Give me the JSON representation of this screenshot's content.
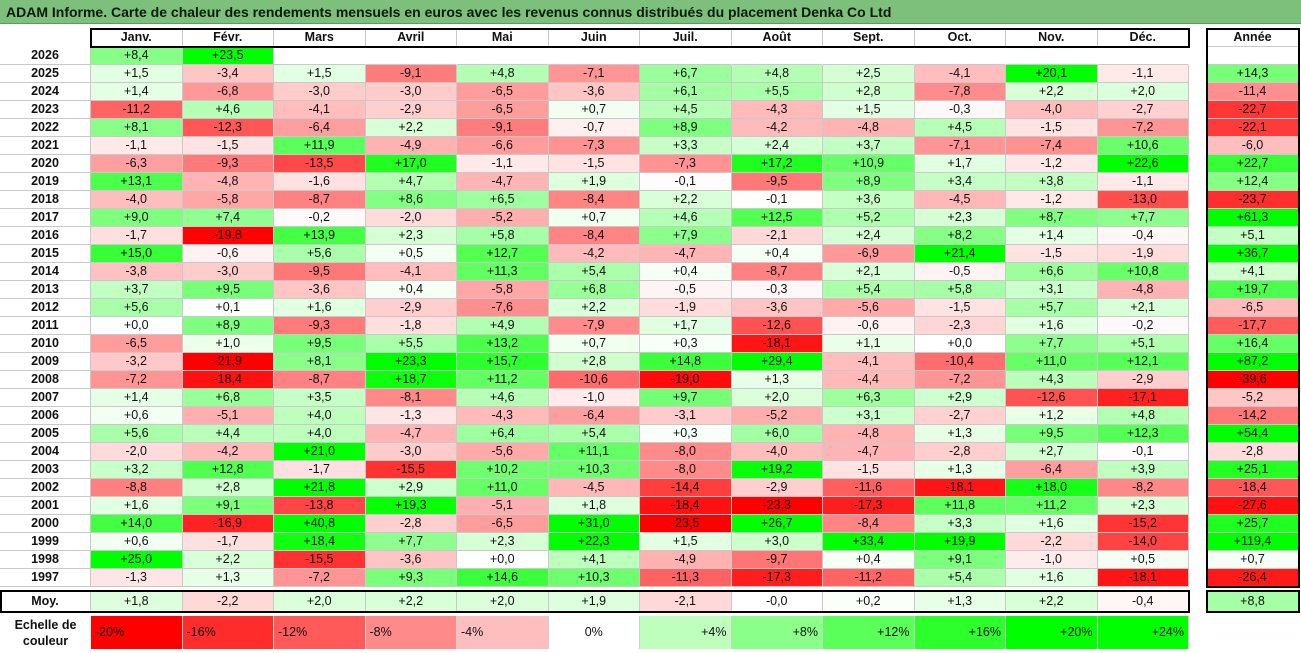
{
  "title": "ADAM Informe. Carte de chaleur des rendements mensuels en euros avec les revenus connus distribués du placement Denka Co Ltd",
  "chart_data": {
    "type": "heatmap",
    "months": [
      "Janv.",
      "Févr.",
      "Mars",
      "Avril",
      "Mai",
      "Juin",
      "Juil.",
      "Août",
      "Sept.",
      "Oct.",
      "Nov.",
      "Déc."
    ],
    "year_header": "Année",
    "rows": [
      {
        "year": "2026",
        "months": [
          "+8,4",
          "+23,5",
          "",
          "",
          "",
          "",
          "",
          "",
          "",
          "",
          "",
          ""
        ],
        "total": ""
      },
      {
        "year": "2025",
        "months": [
          "+1,5",
          "-3,4",
          "+1,5",
          "-9,1",
          "+4,8",
          "-7,1",
          "+6,7",
          "+4,8",
          "+2,5",
          "-4,1",
          "+20,1",
          "-1,1"
        ],
        "total": "+14,3"
      },
      {
        "year": "2024",
        "months": [
          "+1,4",
          "-6,8",
          "-3,0",
          "-3,0",
          "-6,5",
          "-3,6",
          "+6,1",
          "+5,5",
          "+2,8",
          "-7,8",
          "+2,2",
          "+2,0"
        ],
        "total": "-11,4"
      },
      {
        "year": "2023",
        "months": [
          "-11,2",
          "+4,6",
          "-4,1",
          "-2,9",
          "-6,5",
          "+0,7",
          "+4,5",
          "-4,3",
          "+1,5",
          "-0,3",
          "-4,0",
          "-2,7"
        ],
        "total": "-22,7"
      },
      {
        "year": "2022",
        "months": [
          "+8,1",
          "-12,3",
          "-6,4",
          "+2,2",
          "-9,1",
          "-0,7",
          "+8,9",
          "-4,2",
          "-4,8",
          "+4,5",
          "-1,5",
          "-7,2"
        ],
        "total": "-22,1"
      },
      {
        "year": "2021",
        "months": [
          "-1,1",
          "-1,5",
          "+11,9",
          "-4,9",
          "-6,6",
          "-7,3",
          "+3,3",
          "+2,4",
          "+3,7",
          "-7,1",
          "-7,4",
          "+10,6"
        ],
        "total": "-6,0"
      },
      {
        "year": "2020",
        "months": [
          "-6,3",
          "-9,3",
          "-13,5",
          "+17,0",
          "-1,1",
          "-1,5",
          "-7,3",
          "+17,2",
          "+10,9",
          "+1,7",
          "-1,2",
          "+22,6"
        ],
        "total": "+22,7"
      },
      {
        "year": "2019",
        "months": [
          "+13,1",
          "-4,8",
          "-1,6",
          "+4,7",
          "-4,7",
          "+1,9",
          "-0,1",
          "-9,5",
          "+8,9",
          "+3,4",
          "+3,8",
          "-1,1"
        ],
        "total": "+12,4"
      },
      {
        "year": "2018",
        "months": [
          "-4,0",
          "-5,8",
          "-8,7",
          "+8,6",
          "+6,5",
          "-8,4",
          "+2,2",
          "-0,1",
          "+3,6",
          "-4,5",
          "-1,2",
          "-13,0"
        ],
        "total": "-23,7"
      },
      {
        "year": "2017",
        "months": [
          "+9,0",
          "+7,4",
          "-0,2",
          "-2,0",
          "-5,2",
          "+0,7",
          "+4,6",
          "+12,5",
          "+5,2",
          "+2,3",
          "+8,7",
          "+7,7"
        ],
        "total": "+61,3"
      },
      {
        "year": "2016",
        "months": [
          "-1,7",
          "-19,8",
          "+13,9",
          "+2,3",
          "+5,8",
          "-8,4",
          "+7,9",
          "-2,1",
          "+2,4",
          "+8,2",
          "+1,4",
          "-0,4"
        ],
        "total": "+5,1"
      },
      {
        "year": "2015",
        "months": [
          "+15,0",
          "-0,6",
          "+5,6",
          "+0,5",
          "+12,7",
          "-4,2",
          "-4,7",
          "+0,4",
          "-6,9",
          "+21,4",
          "-1,5",
          "-1,9"
        ],
        "total": "+36,7"
      },
      {
        "year": "2014",
        "months": [
          "-3,8",
          "-3,0",
          "-9,5",
          "-4,1",
          "+11,3",
          "+5,4",
          "+0,4",
          "-8,7",
          "+2,1",
          "-0,5",
          "+6,6",
          "+10,8"
        ],
        "total": "+4,1"
      },
      {
        "year": "2013",
        "months": [
          "+3,7",
          "+9,5",
          "-3,6",
          "+0,4",
          "-5,8",
          "+6,8",
          "-0,5",
          "-0,3",
          "+5,4",
          "+5,8",
          "+3,1",
          "-4,8"
        ],
        "total": "+19,7"
      },
      {
        "year": "2012",
        "months": [
          "+5,6",
          "+0,1",
          "+1,6",
          "-2,9",
          "-7,6",
          "+2,2",
          "-1,9",
          "-3,6",
          "-5,6",
          "-1,5",
          "+5,7",
          "+2,1"
        ],
        "total": "-6,5"
      },
      {
        "year": "2011",
        "months": [
          "+0,0",
          "+8,9",
          "-9,3",
          "-1,8",
          "+4,9",
          "-7,9",
          "+1,7",
          "-12,6",
          "-0,6",
          "-2,3",
          "+1,6",
          "-0,2"
        ],
        "total": "-17,7"
      },
      {
        "year": "2010",
        "months": [
          "-6,5",
          "+1,0",
          "+9,5",
          "+5,5",
          "+13,2",
          "+0,7",
          "+0,3",
          "-18,1",
          "+1,1",
          "+0,0",
          "+7,7",
          "+5,1"
        ],
        "total": "+16,4"
      },
      {
        "year": "2009",
        "months": [
          "-3,2",
          "-21,9",
          "+8,1",
          "+23,3",
          "+15,7",
          "+2,8",
          "+14,8",
          "+29,4",
          "-4,1",
          "-10,4",
          "+11,0",
          "+12,1"
        ],
        "total": "+87,2"
      },
      {
        "year": "2008",
        "months": [
          "-7,2",
          "-18,4",
          "-8,7",
          "+18,7",
          "+11,2",
          "-10,6",
          "-19,0",
          "+1,3",
          "-4,4",
          "-7,2",
          "+4,3",
          "-2,9"
        ],
        "total": "-39,6"
      },
      {
        "year": "2007",
        "months": [
          "+1,4",
          "+6,8",
          "+3,5",
          "-8,1",
          "+4,6",
          "-1,0",
          "+9,7",
          "+2,0",
          "+6,3",
          "+2,9",
          "-12,6",
          "-17,1"
        ],
        "total": "-5,2"
      },
      {
        "year": "2006",
        "months": [
          "+0,6",
          "-5,1",
          "+4,0",
          "-1,3",
          "-4,3",
          "-6,4",
          "-3,1",
          "-5,2",
          "+3,1",
          "-2,7",
          "+1,2",
          "+4,8"
        ],
        "total": "-14,2"
      },
      {
        "year": "2005",
        "months": [
          "+5,6",
          "+4,4",
          "+4,0",
          "-4,7",
          "+6,4",
          "+5,4",
          "+0,3",
          "+6,0",
          "-4,8",
          "+1,3",
          "+9,5",
          "+12,3"
        ],
        "total": "+54,4"
      },
      {
        "year": "2004",
        "months": [
          "-2,0",
          "-4,2",
          "+21,0",
          "-3,0",
          "-5,6",
          "+11,1",
          "-8,0",
          "-4,0",
          "-4,7",
          "-2,8",
          "+2,7",
          "-0,1"
        ],
        "total": "-2,8"
      },
      {
        "year": "2003",
        "months": [
          "+3,2",
          "+12,8",
          "-1,7",
          "-15,5",
          "+10,2",
          "+10,3",
          "-8,0",
          "+19,2",
          "-1,5",
          "+1,3",
          "-6,4",
          "+3,9"
        ],
        "total": "+25,1"
      },
      {
        "year": "2002",
        "months": [
          "-8,8",
          "+2,8",
          "+21,8",
          "+2,9",
          "+11,0",
          "-4,5",
          "-14,4",
          "-2,9",
          "-11,6",
          "-18,1",
          "+18,0",
          "-8,2"
        ],
        "total": "-18,4"
      },
      {
        "year": "2001",
        "months": [
          "+1,6",
          "+9,1",
          "-13,8",
          "+19,3",
          "-5,1",
          "+1,8",
          "-18,4",
          "-23,3",
          "-17,3",
          "+11,8",
          "+11,2",
          "+2,3"
        ],
        "total": "-27,6"
      },
      {
        "year": "2000",
        "months": [
          "+14,0",
          "-16,9",
          "+40,8",
          "-2,8",
          "-6,5",
          "+31,0",
          "-23,5",
          "+26,7",
          "-8,4",
          "+3,3",
          "+1,6",
          "-15,2"
        ],
        "total": "+25,7"
      },
      {
        "year": "1999",
        "months": [
          "+0,6",
          "-1,7",
          "+18,4",
          "+7,7",
          "+2,3",
          "+22,3",
          "+1,5",
          "+3,0",
          "+33,4",
          "+19,9",
          "-2,2",
          "-14,0"
        ],
        "total": "+119,4"
      },
      {
        "year": "1998",
        "months": [
          "+25,0",
          "+2,2",
          "-15,5",
          "-3,6",
          "+0,0",
          "+4,1",
          "-4,9",
          "-9,7",
          "+0,4",
          "+9,1",
          "-1,0",
          "+0,5"
        ],
        "total": "+0,7"
      },
      {
        "year": "1997",
        "months": [
          "-1,3",
          "+1,3",
          "-7,2",
          "+9,3",
          "+14,6",
          "+10,3",
          "-11,3",
          "-17,3",
          "-11,2",
          "+5,4",
          "+1,6",
          "-18,1"
        ],
        "total": "-26,4"
      }
    ],
    "average": {
      "label": "Moy.",
      "months": [
        "+1,8",
        "-2,2",
        "+2,0",
        "+2,2",
        "+2,0",
        "+1,9",
        "-2,1",
        "-0,0",
        "+0,2",
        "+1,3",
        "+2,2",
        "-0,4"
      ],
      "total": "+8,8"
    },
    "scale": {
      "label": "Echelle de couleur",
      "steps": [
        "-20%",
        "-16%",
        "-12%",
        "-8%",
        "-4%",
        "0%",
        "+4%",
        "+8%",
        "+12%",
        "+16%",
        "+20%",
        "+24%"
      ],
      "values": [
        -20,
        -16,
        -12,
        -8,
        -4,
        0,
        4,
        8,
        12,
        16,
        20,
        24
      ]
    }
  }
}
